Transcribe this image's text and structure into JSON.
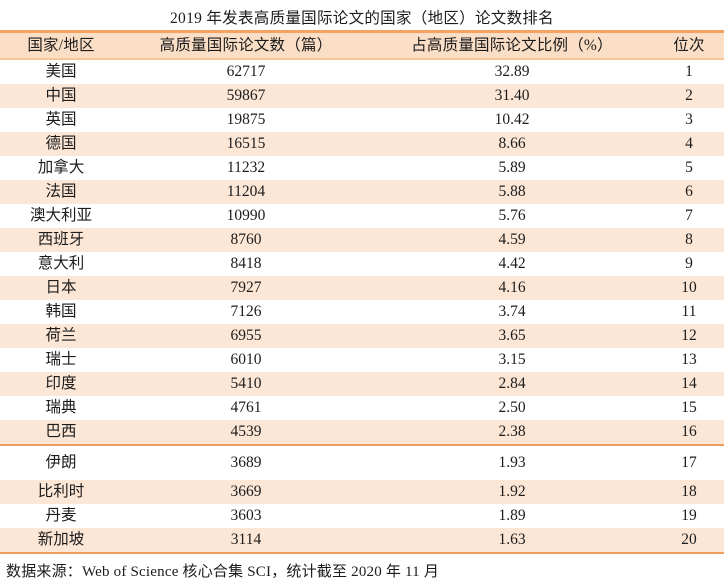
{
  "title": "2019 年发表高质量国际论文的国家（地区）论文数排名",
  "table": {
    "headers": {
      "country": "国家/地区",
      "papers": "高质量国际论文数（篇）",
      "share": "占高质量国际论文比例（%）",
      "rank": "位次"
    },
    "rows": [
      {
        "country": "美国",
        "papers": "62717",
        "share": "32.89",
        "rank": "1"
      },
      {
        "country": "中国",
        "papers": "59867",
        "share": "31.40",
        "rank": "2"
      },
      {
        "country": "英国",
        "papers": "19875",
        "share": "10.42",
        "rank": "3"
      },
      {
        "country": "德国",
        "papers": "16515",
        "share": "8.66",
        "rank": "4"
      },
      {
        "country": "加拿大",
        "papers": "11232",
        "share": "5.89",
        "rank": "5"
      },
      {
        "country": "法国",
        "papers": "11204",
        "share": "5.88",
        "rank": "6"
      },
      {
        "country": "澳大利亚",
        "papers": "10990",
        "share": "5.76",
        "rank": "7"
      },
      {
        "country": "西班牙",
        "papers": "8760",
        "share": "4.59",
        "rank": "8"
      },
      {
        "country": "意大利",
        "papers": "8418",
        "share": "4.42",
        "rank": "9"
      },
      {
        "country": "日本",
        "papers": "7927",
        "share": "4.16",
        "rank": "10"
      },
      {
        "country": "韩国",
        "papers": "7126",
        "share": "3.74",
        "rank": "11"
      },
      {
        "country": "荷兰",
        "papers": "6955",
        "share": "3.65",
        "rank": "12"
      },
      {
        "country": "瑞士",
        "papers": "6010",
        "share": "3.15",
        "rank": "13"
      },
      {
        "country": "印度",
        "papers": "5410",
        "share": "2.84",
        "rank": "14"
      },
      {
        "country": "瑞典",
        "papers": "4761",
        "share": "2.50",
        "rank": "15"
      },
      {
        "country": "巴西",
        "papers": "4539",
        "share": "2.38",
        "rank": "16"
      },
      {
        "country": "伊朗",
        "papers": "3689",
        "share": "1.93",
        "rank": "17"
      },
      {
        "country": "比利时",
        "papers": "3669",
        "share": "1.92",
        "rank": "18"
      },
      {
        "country": "丹麦",
        "papers": "3603",
        "share": "1.89",
        "rank": "19"
      },
      {
        "country": "新加坡",
        "papers": "3114",
        "share": "1.63",
        "rank": "20"
      }
    ]
  },
  "footer": {
    "source": "数据来源：Web of Science 核心合集 SCI，统计截至 2020 年 11 月"
  },
  "colors": {
    "accent_top_border": "#f5a263",
    "header_bg": "#fadec6",
    "header_bottom_border": "#f6c697",
    "alt_row_bg": "#fce7d7",
    "divider_border": "#ef9d5f",
    "text": "#1c1c1c"
  },
  "chart_data": {
    "type": "table",
    "title": "2019 年发表高质量国际论文的国家（地区）论文数排名",
    "columns": [
      "国家/地区",
      "高质量国际论文数（篇）",
      "占高质量国际论文比例（%）",
      "位次"
    ],
    "categories": [
      "美国",
      "中国",
      "英国",
      "德国",
      "加拿大",
      "法国",
      "澳大利亚",
      "西班牙",
      "意大利",
      "日本",
      "韩国",
      "荷兰",
      "瑞士",
      "印度",
      "瑞典",
      "巴西",
      "伊朗",
      "比利时",
      "丹麦",
      "新加坡"
    ],
    "series": [
      {
        "name": "高质量国际论文数（篇）",
        "values": [
          62717,
          59867,
          19875,
          16515,
          11232,
          11204,
          10990,
          8760,
          8418,
          7927,
          7126,
          6955,
          6010,
          5410,
          4761,
          4539,
          3689,
          3669,
          3603,
          3114
        ]
      },
      {
        "name": "占高质量国际论文比例（%）",
        "values": [
          32.89,
          31.4,
          10.42,
          8.66,
          5.89,
          5.88,
          5.76,
          4.59,
          4.42,
          4.16,
          3.74,
          3.65,
          3.15,
          2.84,
          2.5,
          2.38,
          1.93,
          1.92,
          1.89,
          1.63
        ]
      },
      {
        "name": "位次",
        "values": [
          1,
          2,
          3,
          4,
          5,
          6,
          7,
          8,
          9,
          10,
          11,
          12,
          13,
          14,
          15,
          16,
          17,
          18,
          19,
          20
        ]
      }
    ],
    "source_note": "数据来源：Web of Science 核心合集 SCI，统计截至 2020 年 11 月"
  }
}
